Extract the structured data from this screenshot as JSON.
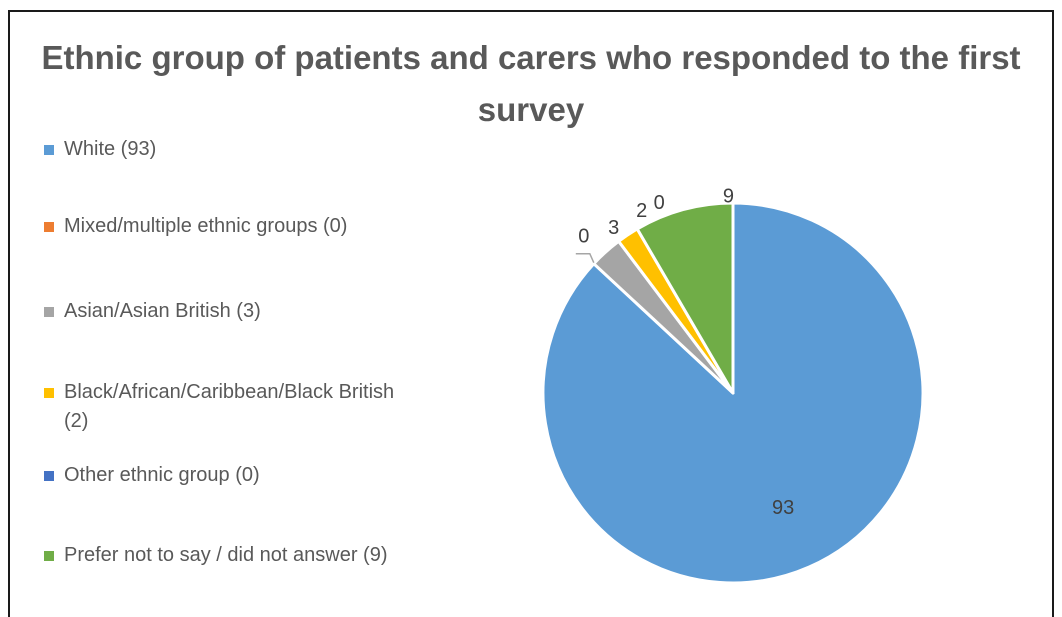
{
  "chart_data": {
    "type": "pie",
    "title": "Ethnic group of patients and carers who responded to the first survey",
    "categories": [
      "White",
      "Mixed/multiple ethnic groups",
      "Asian/Asian British",
      "Black/African/Caribbean/Black British",
      "Other ethnic group",
      "Prefer not to say / did not answer"
    ],
    "values": [
      93,
      0,
      3,
      2,
      0,
      9
    ],
    "legend_labels": [
      "White (93)",
      "Mixed/multiple ethnic groups (0)",
      "Asian/Asian British (3)",
      "Black/African/Caribbean/Black British (2)",
      "Other ethnic group (0)",
      "Prefer not to say / did not answer (9)"
    ],
    "data_labels": [
      "93",
      "0",
      "3",
      "2",
      "0",
      "9"
    ],
    "colors": [
      "#5B9BD5",
      "#ED7D31",
      "#A5A5A5",
      "#FFC000",
      "#4472C4",
      "#70AD47"
    ],
    "legend_position": "left"
  }
}
